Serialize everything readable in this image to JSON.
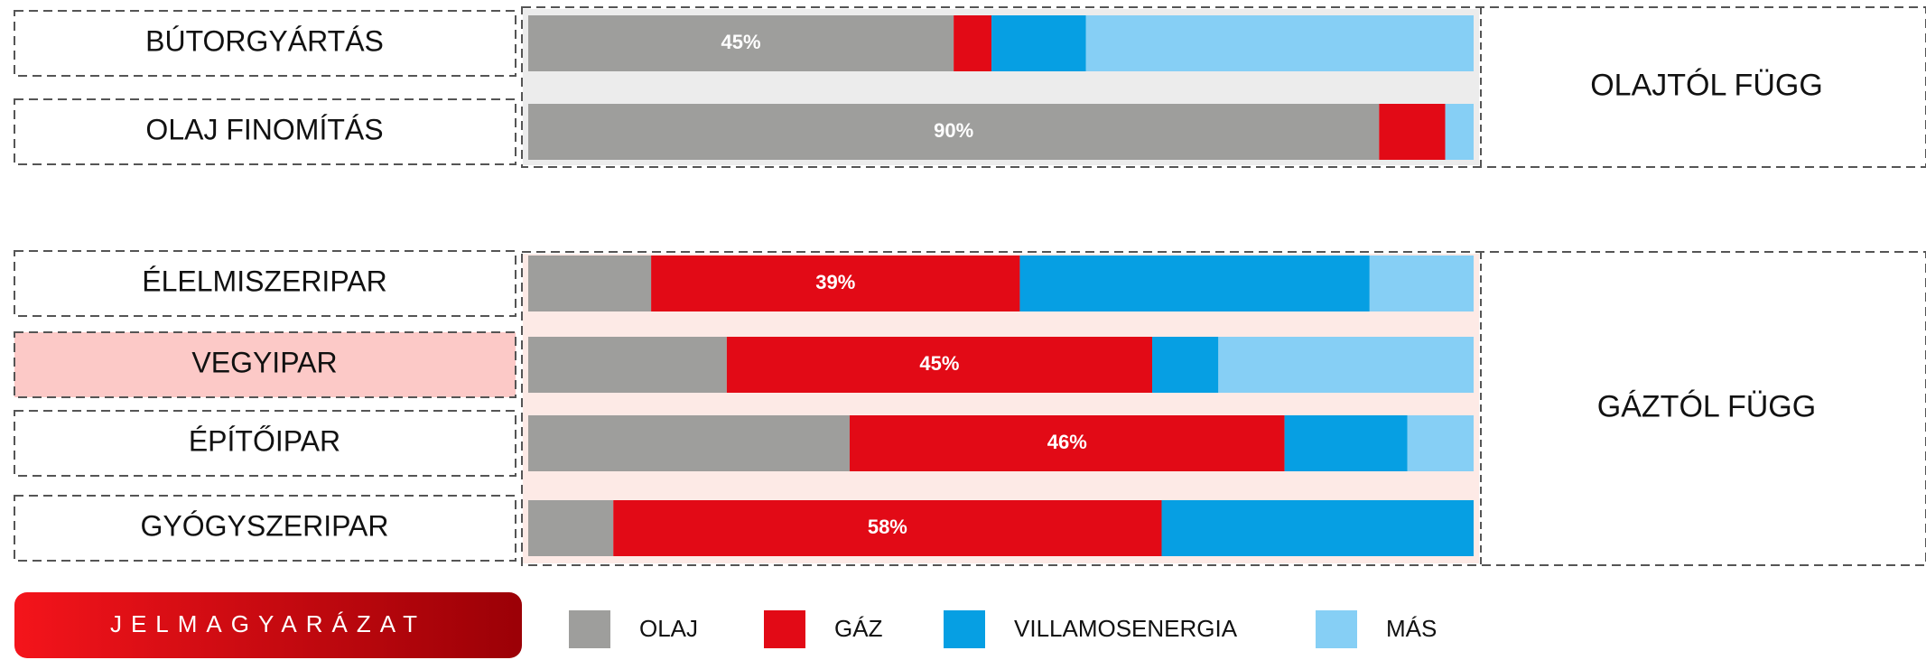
{
  "chart_data": {
    "type": "bar",
    "orientation": "horizontal",
    "stacked": true,
    "categories": [
      "BÚTORGYÁRTÁS",
      "OLAJ FINOMÍTÁS",
      "ÉLELMISZERIPAR",
      "VEGYIPAR",
      "ÉPÍTŐIPAR",
      "GYÓGYSZERIPAR"
    ],
    "highlight_index": 3,
    "groups": [
      {
        "label": "OLAJTÓL FÜGG",
        "from": 0,
        "to": 1
      },
      {
        "label": "GÁZTÓL FÜGG",
        "from": 2,
        "to": 5
      }
    ],
    "xlim": [
      0,
      100
    ],
    "series": [
      {
        "name": "OLAJ",
        "color": "#9e9e9c",
        "values": [
          45,
          90,
          13,
          21,
          34,
          9
        ],
        "value_labels": [
          "45%",
          "90%",
          null,
          null,
          null,
          null
        ]
      },
      {
        "name": "GÁZ",
        "color": "#e20a16",
        "values": [
          4,
          7,
          39,
          45,
          46,
          58
        ],
        "value_labels": [
          null,
          null,
          "39%",
          "45%",
          "46%",
          "58%"
        ]
      },
      {
        "name": "VILLAMOSENERGIA",
        "color": "#069fe3",
        "values": [
          10,
          0,
          37,
          7,
          13,
          33
        ]
      },
      {
        "name": "MÁS",
        "color": "#86cff5",
        "values": [
          41,
          3,
          11,
          27,
          7,
          0
        ]
      }
    ],
    "legend_title": "JELMAGYARÁZAT"
  }
}
